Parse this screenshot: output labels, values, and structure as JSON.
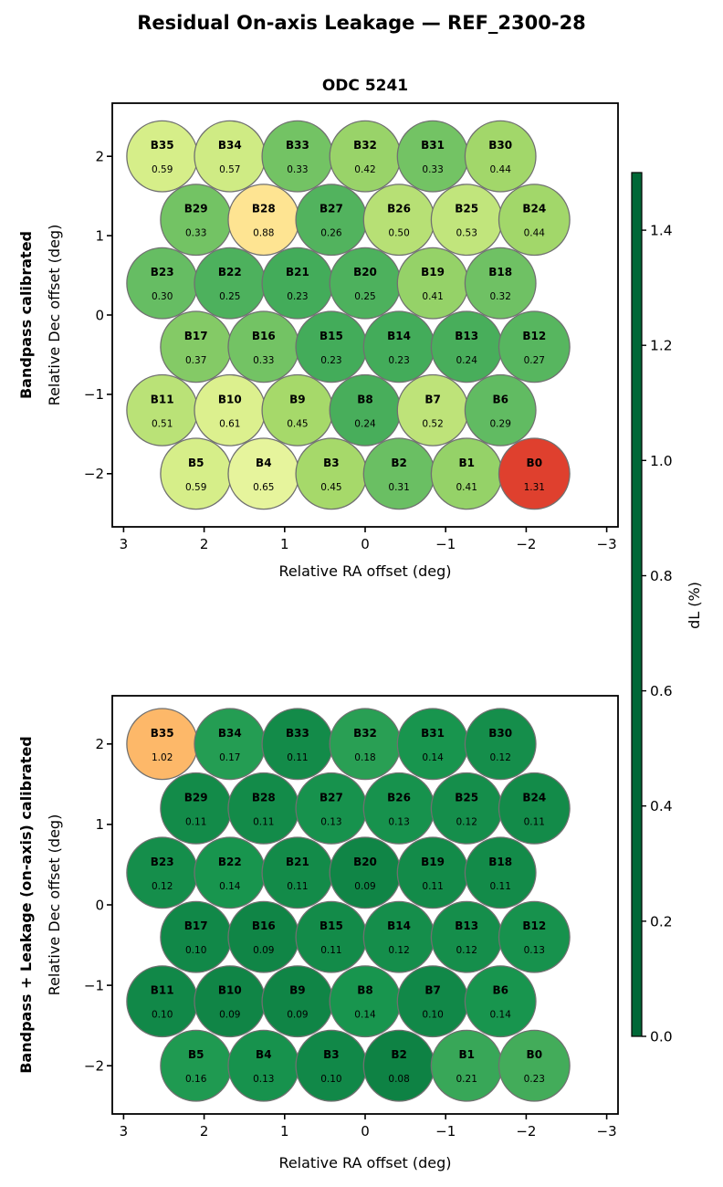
{
  "figure": {
    "title": "Residual On-axis Leakage — REF_2300-28"
  },
  "colorbar": {
    "label": "dL  (%)",
    "vmin": 0.0,
    "vmax": 1.5,
    "ticks": [
      0.0,
      0.2,
      0.4,
      0.6,
      0.8,
      1.0,
      1.2,
      1.4
    ],
    "tick_labels": [
      "0.0",
      "0.2",
      "0.4",
      "0.6",
      "0.8",
      "1.0",
      "1.2",
      "1.4"
    ],
    "cmap_name": "RdYlGn_r",
    "cmap_stops": [
      "#006837",
      "#1a9850",
      "#66bd63",
      "#a6d96a",
      "#d9ef8b",
      "#ffffbf",
      "#fee08b",
      "#fdae61",
      "#f46d43",
      "#d73027",
      "#a50026"
    ]
  },
  "style_colors": {
    "beam_edge": "#707070",
    "axis": "#000000"
  },
  "chart_data": [
    {
      "type": "scatter",
      "title": "ODC 5241",
      "row_label": "Bandpass calibrated",
      "xlabel": "Relative RA offset (deg)",
      "ylabel": "Relative Dec offset (deg)",
      "xlim": [
        3.14,
        -3.14
      ],
      "ylim": [
        -2.67,
        2.67
      ],
      "xticks": [
        3,
        2,
        1,
        0,
        -1,
        -2,
        -3
      ],
      "xtick_labels": [
        "3",
        "2",
        "1",
        "0",
        "−1",
        "−2",
        "−3"
      ],
      "yticks": [
        2,
        1,
        0,
        -1,
        -2
      ],
      "ytick_labels": [
        "2",
        "1",
        "0",
        "−1",
        "−2"
      ],
      "beam_radius_deg": 0.44,
      "beams": [
        {
          "name": "B35",
          "ra": 2.52,
          "dec": 2.0,
          "value": 0.59
        },
        {
          "name": "B34",
          "ra": 1.68,
          "dec": 2.0,
          "value": 0.57
        },
        {
          "name": "B33",
          "ra": 0.84,
          "dec": 2.0,
          "value": 0.33
        },
        {
          "name": "B32",
          "ra": 0.0,
          "dec": 2.0,
          "value": 0.42
        },
        {
          "name": "B31",
          "ra": -0.84,
          "dec": 2.0,
          "value": 0.33
        },
        {
          "name": "B30",
          "ra": -1.68,
          "dec": 2.0,
          "value": 0.44
        },
        {
          "name": "B29",
          "ra": 2.1,
          "dec": 1.2,
          "value": 0.33
        },
        {
          "name": "B28",
          "ra": 1.26,
          "dec": 1.2,
          "value": 0.88
        },
        {
          "name": "B27",
          "ra": 0.42,
          "dec": 1.2,
          "value": 0.26
        },
        {
          "name": "B26",
          "ra": -0.42,
          "dec": 1.2,
          "value": 0.5
        },
        {
          "name": "B25",
          "ra": -1.26,
          "dec": 1.2,
          "value": 0.53
        },
        {
          "name": "B24",
          "ra": -2.1,
          "dec": 1.2,
          "value": 0.44
        },
        {
          "name": "B23",
          "ra": 2.52,
          "dec": 0.4,
          "value": 0.3
        },
        {
          "name": "B22",
          "ra": 1.68,
          "dec": 0.4,
          "value": 0.25
        },
        {
          "name": "B21",
          "ra": 0.84,
          "dec": 0.4,
          "value": 0.23
        },
        {
          "name": "B20",
          "ra": 0.0,
          "dec": 0.4,
          "value": 0.25
        },
        {
          "name": "B19",
          "ra": -0.84,
          "dec": 0.4,
          "value": 0.41
        },
        {
          "name": "B18",
          "ra": -1.68,
          "dec": 0.4,
          "value": 0.32
        },
        {
          "name": "B17",
          "ra": 2.1,
          "dec": -0.4,
          "value": 0.37
        },
        {
          "name": "B16",
          "ra": 1.26,
          "dec": -0.4,
          "value": 0.33
        },
        {
          "name": "B15",
          "ra": 0.42,
          "dec": -0.4,
          "value": 0.23
        },
        {
          "name": "B14",
          "ra": -0.42,
          "dec": -0.4,
          "value": 0.23
        },
        {
          "name": "B13",
          "ra": -1.26,
          "dec": -0.4,
          "value": 0.24
        },
        {
          "name": "B12",
          "ra": -2.1,
          "dec": -0.4,
          "value": 0.27
        },
        {
          "name": "B11",
          "ra": 2.52,
          "dec": -1.2,
          "value": 0.51
        },
        {
          "name": "B10",
          "ra": 1.68,
          "dec": -1.2,
          "value": 0.61
        },
        {
          "name": "B9",
          "ra": 0.84,
          "dec": -1.2,
          "value": 0.45
        },
        {
          "name": "B8",
          "ra": 0.0,
          "dec": -1.2,
          "value": 0.24
        },
        {
          "name": "B7",
          "ra": -0.84,
          "dec": -1.2,
          "value": 0.52
        },
        {
          "name": "B6",
          "ra": -1.68,
          "dec": -1.2,
          "value": 0.29
        },
        {
          "name": "B5",
          "ra": 2.1,
          "dec": -2.0,
          "value": 0.59
        },
        {
          "name": "B4",
          "ra": 1.26,
          "dec": -2.0,
          "value": 0.65
        },
        {
          "name": "B3",
          "ra": 0.42,
          "dec": -2.0,
          "value": 0.45
        },
        {
          "name": "B2",
          "ra": -0.42,
          "dec": -2.0,
          "value": 0.31
        },
        {
          "name": "B1",
          "ra": -1.26,
          "dec": -2.0,
          "value": 0.41
        },
        {
          "name": "B0",
          "ra": -2.1,
          "dec": -2.0,
          "value": 1.31
        }
      ]
    },
    {
      "type": "scatter",
      "title": "",
      "row_label": "Bandpass + Leakage (on-axis) calibrated",
      "xlabel": "Relative RA offset (deg)",
      "ylabel": "Relative Dec offset (deg)",
      "xlim": [
        3.14,
        -3.14
      ],
      "ylim": [
        -2.6,
        2.6
      ],
      "xticks": [
        3,
        2,
        1,
        0,
        -1,
        -2,
        -3
      ],
      "xtick_labels": [
        "3",
        "2",
        "1",
        "0",
        "−1",
        "−2",
        "−3"
      ],
      "yticks": [
        2,
        1,
        0,
        -1,
        -2
      ],
      "ytick_labels": [
        "2",
        "1",
        "0",
        "−1",
        "−2"
      ],
      "beam_radius_deg": 0.44,
      "beams": [
        {
          "name": "B35",
          "ra": 2.52,
          "dec": 2.0,
          "value": 1.02
        },
        {
          "name": "B34",
          "ra": 1.68,
          "dec": 2.0,
          "value": 0.17
        },
        {
          "name": "B33",
          "ra": 0.84,
          "dec": 2.0,
          "value": 0.11
        },
        {
          "name": "B32",
          "ra": 0.0,
          "dec": 2.0,
          "value": 0.18
        },
        {
          "name": "B31",
          "ra": -0.84,
          "dec": 2.0,
          "value": 0.14
        },
        {
          "name": "B30",
          "ra": -1.68,
          "dec": 2.0,
          "value": 0.12
        },
        {
          "name": "B29",
          "ra": 2.1,
          "dec": 1.2,
          "value": 0.11
        },
        {
          "name": "B28",
          "ra": 1.26,
          "dec": 1.2,
          "value": 0.11
        },
        {
          "name": "B27",
          "ra": 0.42,
          "dec": 1.2,
          "value": 0.13
        },
        {
          "name": "B26",
          "ra": -0.42,
          "dec": 1.2,
          "value": 0.13
        },
        {
          "name": "B25",
          "ra": -1.26,
          "dec": 1.2,
          "value": 0.12
        },
        {
          "name": "B24",
          "ra": -2.1,
          "dec": 1.2,
          "value": 0.11
        },
        {
          "name": "B23",
          "ra": 2.52,
          "dec": 0.4,
          "value": 0.12
        },
        {
          "name": "B22",
          "ra": 1.68,
          "dec": 0.4,
          "value": 0.14
        },
        {
          "name": "B21",
          "ra": 0.84,
          "dec": 0.4,
          "value": 0.11
        },
        {
          "name": "B20",
          "ra": 0.0,
          "dec": 0.4,
          "value": 0.09
        },
        {
          "name": "B19",
          "ra": -0.84,
          "dec": 0.4,
          "value": 0.11
        },
        {
          "name": "B18",
          "ra": -1.68,
          "dec": 0.4,
          "value": 0.11
        },
        {
          "name": "B17",
          "ra": 2.1,
          "dec": -0.4,
          "value": 0.1
        },
        {
          "name": "B16",
          "ra": 1.26,
          "dec": -0.4,
          "value": 0.09
        },
        {
          "name": "B15",
          "ra": 0.42,
          "dec": -0.4,
          "value": 0.11
        },
        {
          "name": "B14",
          "ra": -0.42,
          "dec": -0.4,
          "value": 0.12
        },
        {
          "name": "B13",
          "ra": -1.26,
          "dec": -0.4,
          "value": 0.12
        },
        {
          "name": "B12",
          "ra": -2.1,
          "dec": -0.4,
          "value": 0.13
        },
        {
          "name": "B11",
          "ra": 2.52,
          "dec": -1.2,
          "value": 0.1
        },
        {
          "name": "B10",
          "ra": 1.68,
          "dec": -1.2,
          "value": 0.09
        },
        {
          "name": "B9",
          "ra": 0.84,
          "dec": -1.2,
          "value": 0.09
        },
        {
          "name": "B8",
          "ra": 0.0,
          "dec": -1.2,
          "value": 0.14
        },
        {
          "name": "B7",
          "ra": -0.84,
          "dec": -1.2,
          "value": 0.1
        },
        {
          "name": "B6",
          "ra": -1.68,
          "dec": -1.2,
          "value": 0.14
        },
        {
          "name": "B5",
          "ra": 2.1,
          "dec": -2.0,
          "value": 0.16
        },
        {
          "name": "B4",
          "ra": 1.26,
          "dec": -2.0,
          "value": 0.13
        },
        {
          "name": "B3",
          "ra": 0.42,
          "dec": -2.0,
          "value": 0.1
        },
        {
          "name": "B2",
          "ra": -0.42,
          "dec": -2.0,
          "value": 0.08
        },
        {
          "name": "B1",
          "ra": -1.26,
          "dec": -2.0,
          "value": 0.21
        },
        {
          "name": "B0",
          "ra": -2.1,
          "dec": -2.0,
          "value": 0.23
        }
      ]
    }
  ]
}
